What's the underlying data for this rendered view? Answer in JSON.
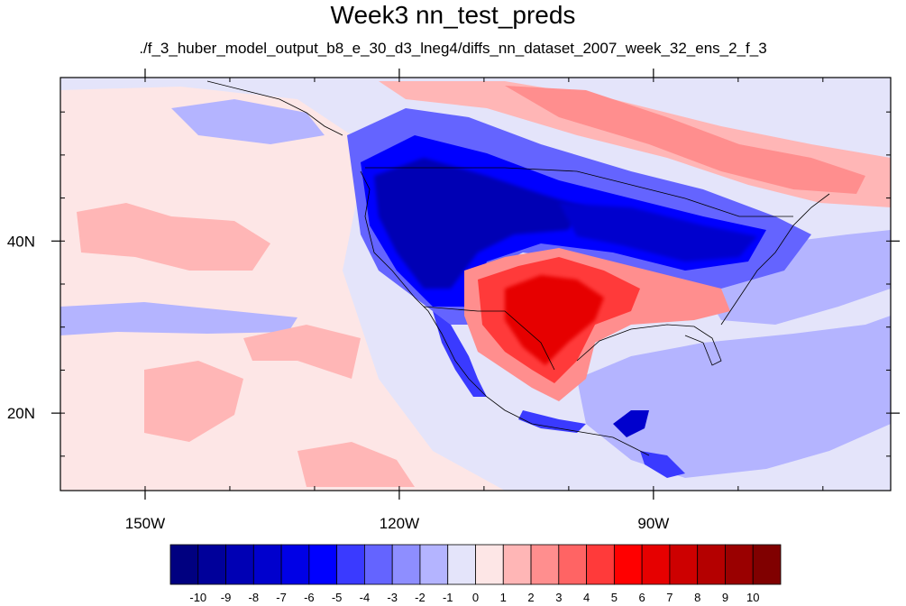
{
  "title": "Week3 nn_test_preds",
  "subtitle": "./f_3_huber_model_output_b8_e_30_d3_lneg4/diffs_nn_dataset_2007_week_32_ens_2_f_3",
  "map": {
    "lon_range": [
      -160,
      -62
    ],
    "lat_range": [
      11,
      59
    ],
    "lon_ticks": [
      {
        "value": -150,
        "label": "150W"
      },
      {
        "value": -120,
        "label": "120W"
      },
      {
        "value": -90,
        "label": "90W"
      }
    ],
    "lat_ticks": [
      {
        "value": 40,
        "label": "40N"
      },
      {
        "value": 20,
        "label": "20N"
      }
    ],
    "background_color": "#fde6e6"
  },
  "colorbar": {
    "labels": [
      "-10",
      "-9",
      "-8",
      "-7",
      "-6",
      "-5",
      "-4",
      "-3",
      "-2",
      "-1",
      "0",
      "1",
      "2",
      "3",
      "4",
      "5",
      "6",
      "7",
      "8",
      "9",
      "10"
    ],
    "colors": [
      "#000080",
      "#00009a",
      "#0000b4",
      "#0000cd",
      "#0000e6",
      "#0000ff",
      "#3a3aff",
      "#6464ff",
      "#8e8eff",
      "#b4b4ff",
      "#e4e4fa",
      "#fde6e6",
      "#ffb6b6",
      "#ff8e8e",
      "#ff6464",
      "#ff3a3a",
      "#ff0000",
      "#e60000",
      "#cd0000",
      "#b40000",
      "#9a0000",
      "#800000"
    ]
  }
}
